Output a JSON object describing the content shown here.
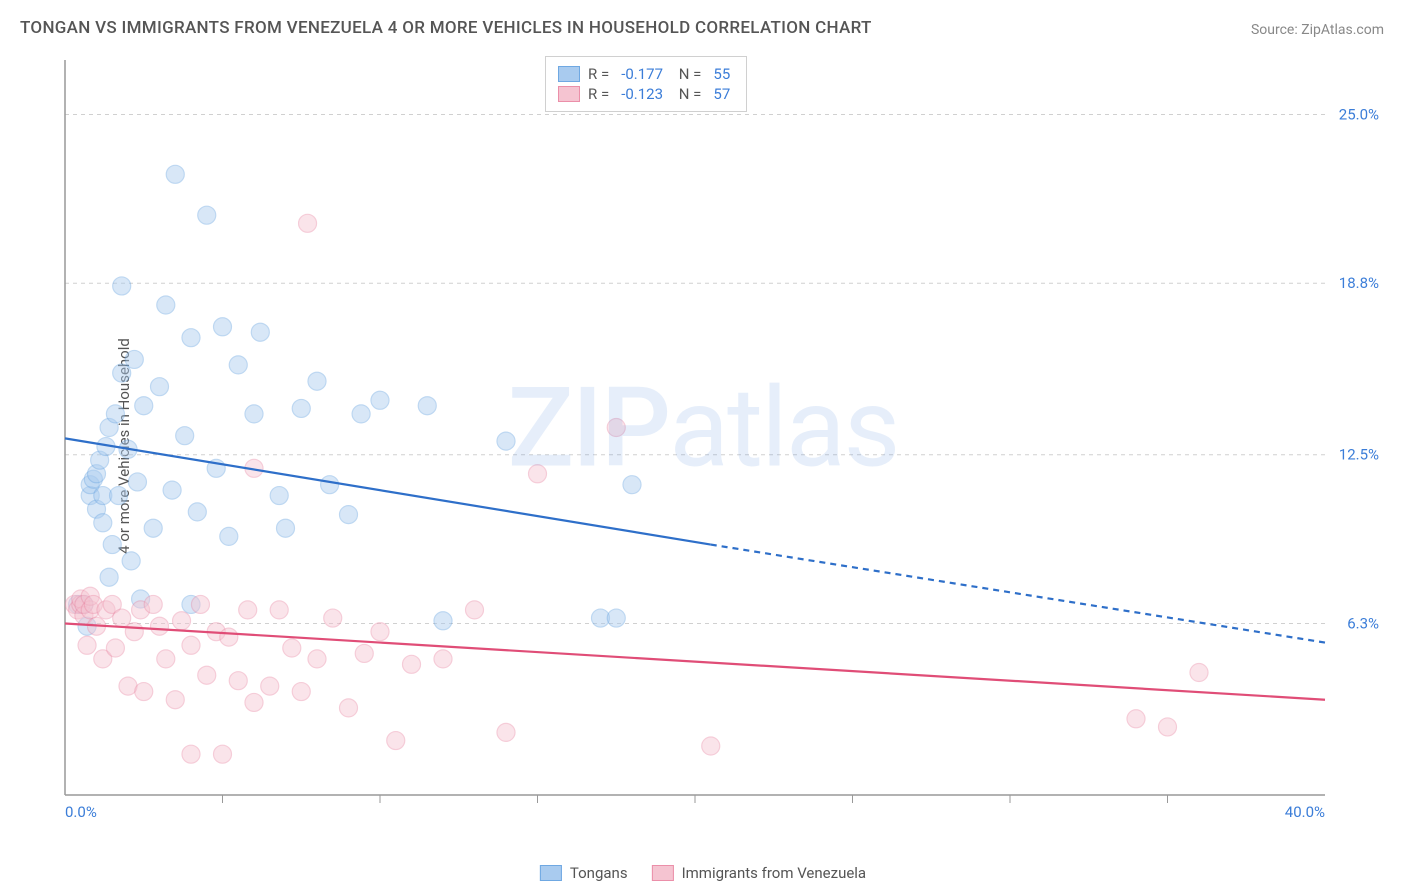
{
  "title": "TONGAN VS IMMIGRANTS FROM VENEZUELA 4 OR MORE VEHICLES IN HOUSEHOLD CORRELATION CHART",
  "source": "Source: ZipAtlas.com",
  "ylabel": "4 or more Vehicles in Household",
  "watermark": "ZIPatlas",
  "chart": {
    "type": "scatter",
    "xlim": [
      0,
      40
    ],
    "ylim": [
      0,
      27
    ],
    "x_tick_labels": {
      "min": "0.0%",
      "max": "40.0%"
    },
    "y_ticks": [
      {
        "v": 6.3,
        "label": "6.3%"
      },
      {
        "v": 12.5,
        "label": "12.5%"
      },
      {
        "v": 18.8,
        "label": "18.8%"
      },
      {
        "v": 25.0,
        "label": "25.0%"
      }
    ],
    "background_color": "#ffffff",
    "grid_color": "#d0d0d0",
    "axis_color": "#999999",
    "tick_label_color": "#3b7dd8",
    "marker_radius": 9,
    "marker_opacity": 0.45,
    "line_width": 2.2,
    "series": [
      {
        "name": "Tongans",
        "color_fill": "#a9cbef",
        "color_stroke": "#6fa8e2",
        "line_color": "#2e6fc9",
        "R": "-0.177",
        "N": "55",
        "regression": {
          "x1": 0,
          "y1": 13.1,
          "x2": 20.5,
          "y2": 9.2,
          "dash_x2": 40,
          "dash_y2": 5.6
        },
        "points": [
          [
            0.4,
            7.0
          ],
          [
            0.6,
            7.0
          ],
          [
            0.7,
            6.2
          ],
          [
            0.8,
            11.0
          ],
          [
            0.8,
            11.4
          ],
          [
            0.9,
            11.6
          ],
          [
            1.0,
            10.5
          ],
          [
            1.0,
            11.8
          ],
          [
            1.1,
            12.3
          ],
          [
            1.2,
            10.0
          ],
          [
            1.2,
            11.0
          ],
          [
            1.3,
            12.8
          ],
          [
            1.4,
            8.0
          ],
          [
            1.4,
            13.5
          ],
          [
            1.5,
            9.2
          ],
          [
            1.6,
            14.0
          ],
          [
            1.7,
            11.0
          ],
          [
            1.8,
            15.5
          ],
          [
            1.8,
            18.7
          ],
          [
            2.0,
            12.7
          ],
          [
            2.1,
            8.6
          ],
          [
            2.2,
            16.0
          ],
          [
            2.3,
            11.5
          ],
          [
            2.4,
            7.2
          ],
          [
            2.5,
            14.3
          ],
          [
            2.8,
            9.8
          ],
          [
            3.0,
            15.0
          ],
          [
            3.2,
            18.0
          ],
          [
            3.4,
            11.2
          ],
          [
            3.5,
            22.8
          ],
          [
            3.8,
            13.2
          ],
          [
            4.0,
            7.0
          ],
          [
            4.0,
            16.8
          ],
          [
            4.2,
            10.4
          ],
          [
            4.5,
            21.3
          ],
          [
            4.8,
            12.0
          ],
          [
            5.0,
            17.2
          ],
          [
            5.2,
            9.5
          ],
          [
            5.5,
            15.8
          ],
          [
            6.0,
            14.0
          ],
          [
            6.2,
            17.0
          ],
          [
            6.8,
            11.0
          ],
          [
            7.0,
            9.8
          ],
          [
            7.5,
            14.2
          ],
          [
            8.0,
            15.2
          ],
          [
            8.4,
            11.4
          ],
          [
            9.0,
            10.3
          ],
          [
            9.4,
            14.0
          ],
          [
            10.0,
            14.5
          ],
          [
            11.5,
            14.3
          ],
          [
            12.0,
            6.4
          ],
          [
            14.0,
            13.0
          ],
          [
            17.0,
            6.5
          ],
          [
            17.5,
            6.5
          ],
          [
            18.0,
            11.4
          ]
        ]
      },
      {
        "name": "Immigrants from Venezuela",
        "color_fill": "#f5c4d1",
        "color_stroke": "#eb8fa9",
        "line_color": "#e04d77",
        "R": "-0.123",
        "N": "57",
        "regression": {
          "x1": 0,
          "y1": 6.3,
          "x2": 40,
          "y2": 3.5,
          "dash_x2": 40,
          "dash_y2": 3.5
        },
        "points": [
          [
            0.3,
            7.0
          ],
          [
            0.4,
            6.8
          ],
          [
            0.5,
            7.0
          ],
          [
            0.5,
            7.2
          ],
          [
            0.6,
            6.6
          ],
          [
            0.6,
            7.0
          ],
          [
            0.7,
            5.5
          ],
          [
            0.8,
            6.8
          ],
          [
            0.8,
            7.3
          ],
          [
            0.9,
            7.0
          ],
          [
            1.0,
            6.2
          ],
          [
            1.2,
            5.0
          ],
          [
            1.3,
            6.8
          ],
          [
            1.5,
            7.0
          ],
          [
            1.6,
            5.4
          ],
          [
            1.8,
            6.5
          ],
          [
            2.0,
            4.0
          ],
          [
            2.2,
            6.0
          ],
          [
            2.4,
            6.8
          ],
          [
            2.5,
            3.8
          ],
          [
            2.8,
            7.0
          ],
          [
            3.0,
            6.2
          ],
          [
            3.2,
            5.0
          ],
          [
            3.5,
            3.5
          ],
          [
            3.7,
            6.4
          ],
          [
            4.0,
            5.5
          ],
          [
            4.0,
            1.5
          ],
          [
            4.3,
            7.0
          ],
          [
            4.5,
            4.4
          ],
          [
            4.8,
            6.0
          ],
          [
            5.0,
            1.5
          ],
          [
            5.2,
            5.8
          ],
          [
            5.5,
            4.2
          ],
          [
            5.8,
            6.8
          ],
          [
            6.0,
            3.4
          ],
          [
            6.0,
            12.0
          ],
          [
            6.5,
            4.0
          ],
          [
            6.8,
            6.8
          ],
          [
            7.2,
            5.4
          ],
          [
            7.5,
            3.8
          ],
          [
            7.7,
            21.0
          ],
          [
            8.0,
            5.0
          ],
          [
            8.5,
            6.5
          ],
          [
            9.0,
            3.2
          ],
          [
            9.5,
            5.2
          ],
          [
            10.0,
            6.0
          ],
          [
            10.5,
            2.0
          ],
          [
            11.0,
            4.8
          ],
          [
            12.0,
            5.0
          ],
          [
            13.0,
            6.8
          ],
          [
            14.0,
            2.3
          ],
          [
            15.0,
            11.8
          ],
          [
            17.5,
            13.5
          ],
          [
            20.5,
            1.8
          ],
          [
            34.0,
            2.8
          ],
          [
            35.0,
            2.5
          ],
          [
            36.0,
            4.5
          ]
        ]
      }
    ]
  },
  "legend_bottom": [
    {
      "label": "Tongans",
      "fill": "#a9cbef",
      "stroke": "#6fa8e2"
    },
    {
      "label": "Immigrants from Venezuela",
      "fill": "#f5c4d1",
      "stroke": "#eb8fa9"
    }
  ]
}
